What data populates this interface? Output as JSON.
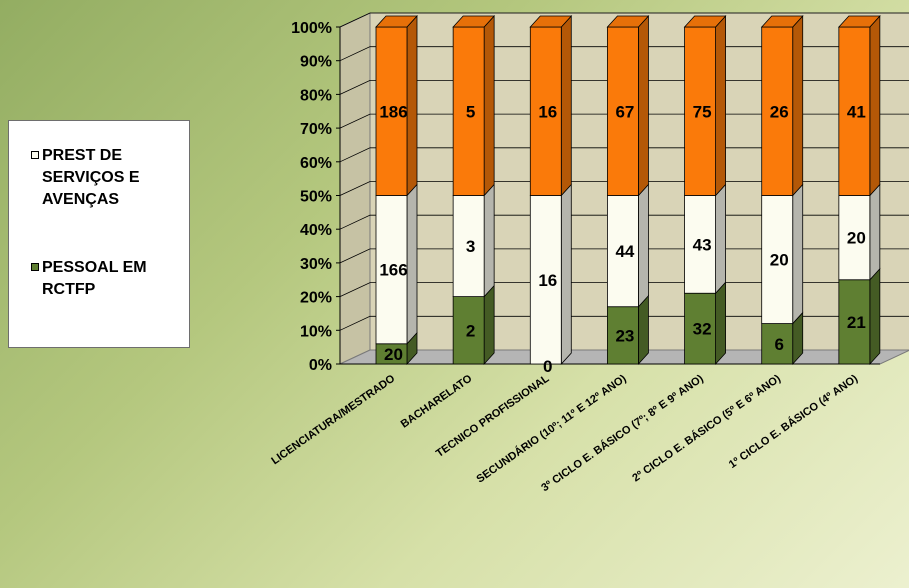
{
  "chart_data": {
    "type": "bar",
    "stacked": "percent",
    "categories": [
      "LICENCIATURA/MESTRADO",
      "BACHARELATO",
      "TECNICO PROFISSIONAL",
      "SECUNDÁRIO (10º; 11º E 12º ANO)",
      "3º CICLO E. BÁSICO (7º; 8º E 9º ANO)",
      "2º CICLO E. BÁSICO (5º E 6º ANO)",
      "1º CICLO E. BÁSICO (4º ANO)"
    ],
    "series": [
      {
        "name": "PESSOAL EM RCTFP",
        "color": "#5f7f32",
        "values": [
          20,
          2,
          0,
          23,
          32,
          6,
          21
        ],
        "shares": [
          0.06,
          0.2,
          0.0,
          0.17,
          0.21,
          0.12,
          0.25
        ]
      },
      {
        "name": "PREST DE SERVIÇOS E AVENÇAS",
        "color": "#fcfcf0",
        "values": [
          166,
          3,
          16,
          44,
          43,
          20,
          20
        ],
        "shares": [
          0.44,
          0.3,
          0.5,
          0.33,
          0.29,
          0.38,
          0.25
        ]
      },
      {
        "name": "",
        "color": "#fa7a0a",
        "values": [
          186,
          5,
          16,
          67,
          75,
          26,
          41
        ],
        "shares": [
          0.5,
          0.5,
          0.5,
          0.5,
          0.5,
          0.5,
          0.5
        ]
      }
    ],
    "yticks": [
      "0%",
      "10%",
      "20%",
      "30%",
      "40%",
      "50%",
      "60%",
      "70%",
      "80%",
      "90%",
      "100%"
    ],
    "ylim": [
      0,
      100
    ],
    "grid": true,
    "legend_position": "left"
  },
  "legend": {
    "items": [
      {
        "label": "PREST DE SERVIÇOS E AVENÇAS",
        "color": "#fcfcf0"
      },
      {
        "label": "PESSOAL EM RCTFP",
        "color": "#5f7f32"
      }
    ]
  }
}
